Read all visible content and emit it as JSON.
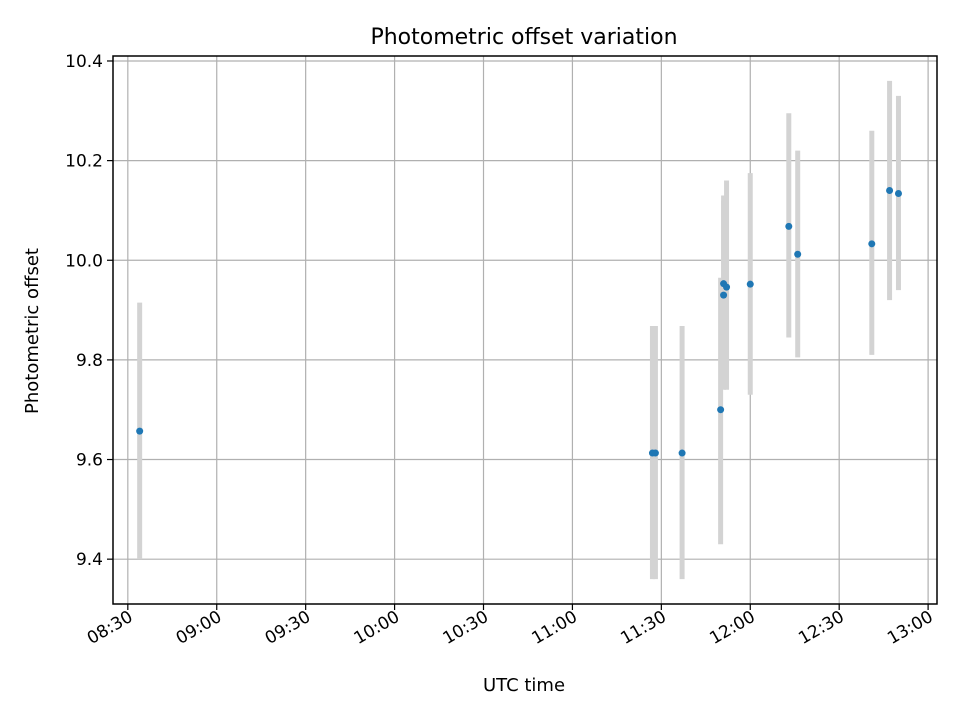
{
  "chart_data": {
    "type": "scatter",
    "title": "Photometric offset variation",
    "xlabel": "UTC time",
    "ylabel": "Photometric offset",
    "xlim": [
      "08:25",
      "13:03"
    ],
    "ylim": [
      9.31,
      10.41
    ],
    "x_ticks": [
      "08:30",
      "09:00",
      "09:30",
      "10:00",
      "10:30",
      "11:00",
      "11:30",
      "12:00",
      "12:30",
      "13:00"
    ],
    "y_ticks": [
      9.4,
      9.6,
      9.8,
      10.0,
      10.2,
      10.4
    ],
    "grid": true,
    "colors": {
      "points": "#1f77b4",
      "error_bars": "#d3d3d3",
      "grid": "#b0b0b0"
    },
    "points": [
      {
        "x": "08:34",
        "y": 9.657,
        "yerr": [
          9.4,
          9.915
        ]
      },
      {
        "x": "11:27",
        "y": 9.613,
        "yerr": [
          9.36,
          9.868
        ]
      },
      {
        "x": "11:28",
        "y": 9.613,
        "yerr": [
          9.36,
          9.868
        ]
      },
      {
        "x": "11:37",
        "y": 9.613,
        "yerr": [
          9.36,
          9.868
        ]
      },
      {
        "x": "11:50",
        "y": 9.7,
        "yerr": [
          9.43,
          9.965
        ]
      },
      {
        "x": "11:51",
        "y": 9.93,
        "yerr": [
          9.74,
          10.12
        ]
      },
      {
        "x": "11:51",
        "y": 9.953,
        "yerr": [
          9.745,
          10.13
        ]
      },
      {
        "x": "11:52",
        "y": 9.946,
        "yerr": [
          9.74,
          10.16
        ]
      },
      {
        "x": "12:00",
        "y": 9.952,
        "yerr": [
          9.73,
          10.175
        ]
      },
      {
        "x": "12:13",
        "y": 10.068,
        "yerr": [
          9.845,
          10.295
        ]
      },
      {
        "x": "12:16",
        "y": 10.012,
        "yerr": [
          9.805,
          10.22
        ]
      },
      {
        "x": "12:41",
        "y": 10.033,
        "yerr": [
          9.81,
          10.26
        ]
      },
      {
        "x": "12:47",
        "y": 10.14,
        "yerr": [
          9.92,
          10.36
        ]
      },
      {
        "x": "12:50",
        "y": 10.134,
        "yerr": [
          9.94,
          10.33
        ]
      }
    ]
  }
}
